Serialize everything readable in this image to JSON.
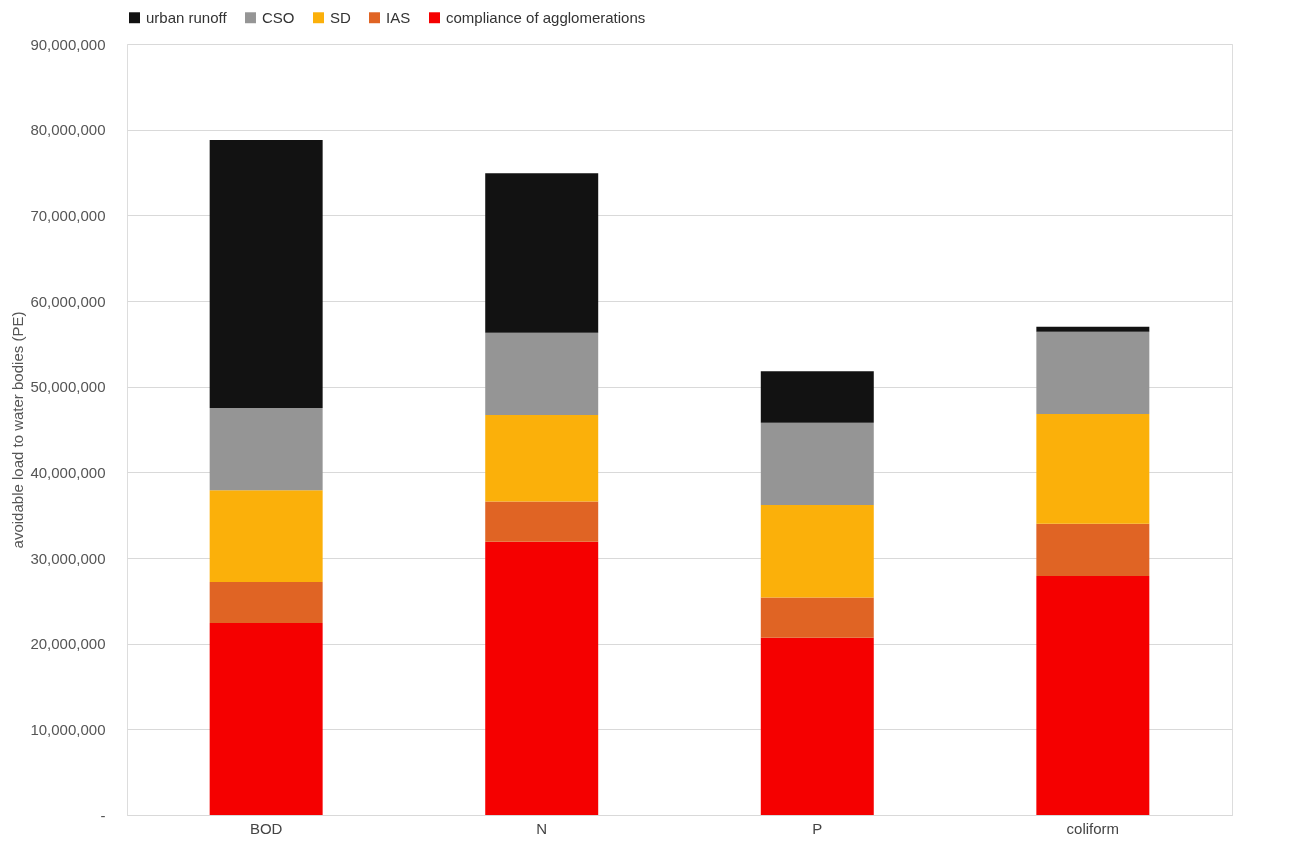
{
  "chart_data": {
    "type": "bar",
    "stacked": true,
    "ylabel": "avoidable load to water bodies (PE)",
    "categories": [
      "BOD",
      "N",
      "P",
      "coliform"
    ],
    "series": [
      {
        "name": "compliance of agglomerations",
        "color": "#f50000",
        "values": [
          22400000,
          31900000,
          20700000,
          27900000
        ]
      },
      {
        "name": "IAS",
        "color": "#e06424",
        "values": [
          4800000,
          4700000,
          4700000,
          6100000
        ]
      },
      {
        "name": "SD",
        "color": "#fbb00a",
        "values": [
          10700000,
          10100000,
          10800000,
          12800000
        ]
      },
      {
        "name": "CSO",
        "color": "#959595",
        "values": [
          9600000,
          9600000,
          9600000,
          9600000
        ]
      },
      {
        "name": "urban runoff",
        "color": "#121212",
        "values": [
          31300000,
          18600000,
          6000000,
          600000
        ]
      }
    ],
    "ylim": [
      0,
      90000000
    ],
    "yticks": [
      {
        "value": 0,
        "label": "-"
      },
      {
        "value": 10000000,
        "label": "10,000,000"
      },
      {
        "value": 20000000,
        "label": "20,000,000"
      },
      {
        "value": 30000000,
        "label": "30,000,000"
      },
      {
        "value": 40000000,
        "label": "40,000,000"
      },
      {
        "value": 50000000,
        "label": "50,000,000"
      },
      {
        "value": 60000000,
        "label": "60,000,000"
      },
      {
        "value": 70000000,
        "label": "70,000,000"
      },
      {
        "value": 80000000,
        "label": "80,000,000"
      },
      {
        "value": 90000000,
        "label": "90,000,000"
      }
    ],
    "grid": "y",
    "legend": "top"
  }
}
